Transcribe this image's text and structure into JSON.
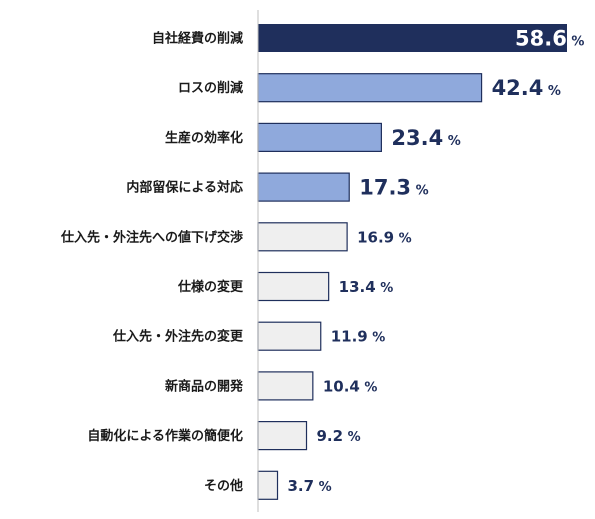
{
  "chart_data": {
    "type": "bar",
    "orientation": "horizontal",
    "categories": [
      "自社経費の削減",
      "ロスの削減",
      "生産の効率化",
      "内部留保による対応",
      "仕入先・外注先への値下げ交渉",
      "仕様の変更",
      "仕入先・外注先の変更",
      "新商品の開発",
      "自動化による作業の簡便化",
      "その他"
    ],
    "values": [
      58.6,
      42.4,
      23.4,
      17.3,
      16.9,
      13.4,
      11.9,
      10.4,
      9.2,
      3.7
    ],
    "value_labels": [
      "58.6",
      "42.4",
      "23.4",
      "17.3",
      "16.9",
      "13.4",
      "11.9",
      "10.4",
      "9.2",
      "3.7"
    ],
    "unit": "%",
    "xlim": [
      0,
      60
    ],
    "grid": false,
    "bar_styles": [
      "dark",
      "medium",
      "medium",
      "medium",
      "light",
      "light",
      "light",
      "light",
      "light",
      "light"
    ]
  },
  "colors": {
    "dark": "#1f2f5c",
    "medium": "#8fa9dc",
    "light": "#efefef",
    "bar_border": "#1f2f5c",
    "label_on_dark": "#ffffff",
    "label_on_light": "#1f2f5c",
    "axis": "#bfbfbf"
  }
}
